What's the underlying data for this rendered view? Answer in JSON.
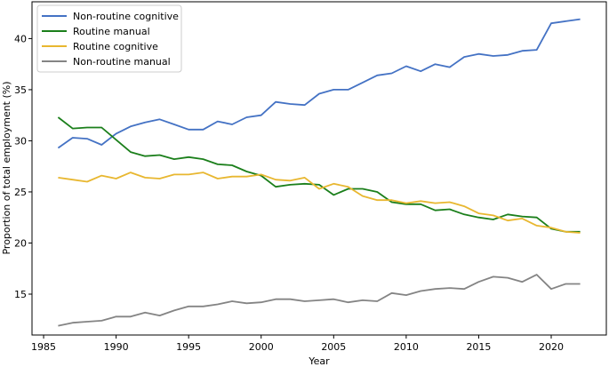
{
  "chart_data": {
    "type": "line",
    "xlabel": "Year",
    "ylabel": "Proportion of total employment (%)",
    "xlim": [
      1984.2,
      2023.8
    ],
    "ylim": [
      11,
      43.6
    ],
    "xticks": [
      1985,
      1990,
      1995,
      2000,
      2005,
      2010,
      2015,
      2020
    ],
    "yticks": [
      15,
      20,
      25,
      30,
      35,
      40
    ],
    "grid": false,
    "legend_position": "top-left",
    "x": [
      1986,
      1987,
      1988,
      1989,
      1990,
      1991,
      1992,
      1993,
      1994,
      1995,
      1996,
      1997,
      1998,
      1999,
      2000,
      2001,
      2002,
      2003,
      2004,
      2005,
      2006,
      2007,
      2008,
      2009,
      2010,
      2011,
      2012,
      2013,
      2014,
      2015,
      2016,
      2017,
      2018,
      2019,
      2020,
      2021,
      2022
    ],
    "series": [
      {
        "name": "Non-routine cognitive",
        "color": "#4472c4",
        "values": [
          29.3,
          30.3,
          30.2,
          29.6,
          30.7,
          31.4,
          31.8,
          32.1,
          31.6,
          31.1,
          31.1,
          31.9,
          31.6,
          32.3,
          32.5,
          33.8,
          33.6,
          33.5,
          34.6,
          35.0,
          35.0,
          35.7,
          36.4,
          36.6,
          37.3,
          36.8,
          37.5,
          37.2,
          38.2,
          38.5,
          38.3,
          38.4,
          38.8,
          38.9,
          41.5,
          41.7,
          41.9
        ]
      },
      {
        "name": "Routine manual",
        "color": "#1b7f1b",
        "values": [
          32.3,
          31.2,
          31.3,
          31.3,
          30.1,
          28.9,
          28.5,
          28.6,
          28.2,
          28.4,
          28.2,
          27.7,
          27.6,
          27.0,
          26.6,
          25.5,
          25.7,
          25.8,
          25.7,
          24.7,
          25.3,
          25.3,
          25.0,
          24.0,
          23.8,
          23.8,
          23.2,
          23.3,
          22.8,
          22.5,
          22.3,
          22.8,
          22.6,
          22.5,
          21.4,
          21.1,
          21.1
        ]
      },
      {
        "name": "Routine cognitive",
        "color": "#e8b730",
        "values": [
          26.4,
          26.2,
          26.0,
          26.6,
          26.3,
          26.9,
          26.4,
          26.3,
          26.7,
          26.7,
          26.9,
          26.3,
          26.5,
          26.5,
          26.7,
          26.2,
          26.1,
          26.4,
          25.3,
          25.8,
          25.5,
          24.6,
          24.2,
          24.2,
          23.9,
          24.1,
          23.9,
          24.0,
          23.6,
          22.9,
          22.7,
          22.2,
          22.4,
          21.7,
          21.5,
          21.1,
          21.0
        ]
      },
      {
        "name": "Non-routine manual",
        "color": "#848484",
        "values": [
          11.9,
          12.2,
          12.3,
          12.4,
          12.8,
          12.8,
          13.2,
          12.9,
          13.4,
          13.8,
          13.8,
          14.0,
          14.3,
          14.1,
          14.2,
          14.5,
          14.5,
          14.3,
          14.4,
          14.5,
          14.2,
          14.4,
          14.3,
          15.1,
          14.9,
          15.3,
          15.5,
          15.6,
          15.5,
          16.2,
          16.7,
          16.6,
          16.2,
          16.9,
          15.5,
          16.0,
          16.0
        ]
      }
    ]
  }
}
